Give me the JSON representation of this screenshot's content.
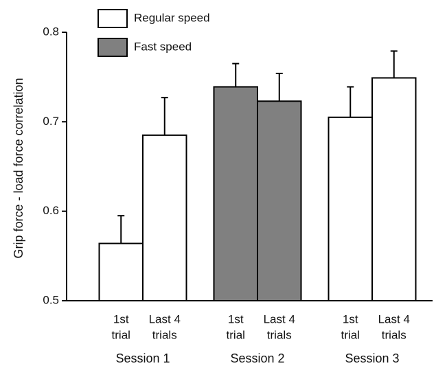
{
  "chart_data": {
    "type": "bar",
    "y_label": "Grip force - load force correlation",
    "categories": [
      [
        "1st",
        "trial"
      ],
      [
        "Last 4",
        "trials"
      ],
      [
        "1st",
        "trial"
      ],
      [
        "Last 4",
        "trials"
      ],
      [
        "1st",
        "trial"
      ],
      [
        "Last 4",
        "trials"
      ]
    ],
    "groups": [
      "Session 1",
      "Session 2",
      "Session 3"
    ],
    "series": [
      {
        "name": "Regular speed",
        "color": "#ffffff",
        "values": [
          0.564,
          0.685,
          null,
          null,
          0.705,
          0.749
        ],
        "errors": [
          0.031,
          0.042,
          null,
          null,
          0.034,
          0.03
        ]
      },
      {
        "name": "Fast speed",
        "color": "#808080",
        "values": [
          null,
          null,
          0.739,
          0.723,
          null,
          null
        ],
        "errors": [
          null,
          null,
          0.026,
          0.031,
          null,
          null
        ]
      }
    ],
    "ylim": [
      0.5,
      0.8
    ],
    "yticks": [
      0.5,
      0.6,
      0.7,
      0.8
    ],
    "legend": "upper left"
  }
}
